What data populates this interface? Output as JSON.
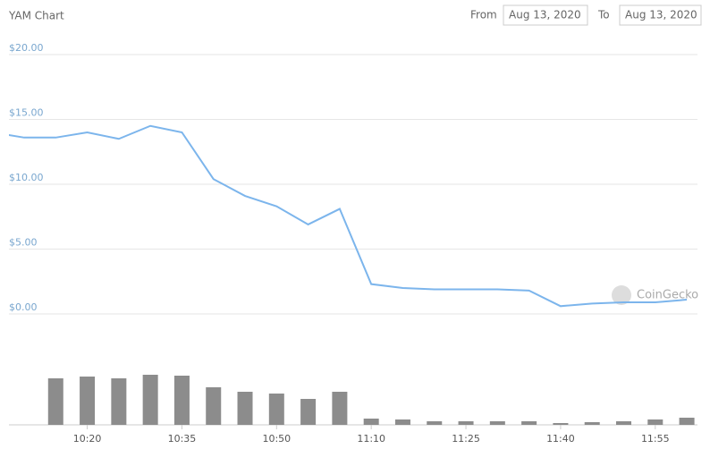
{
  "title": "YAM Chart",
  "from_label": "From",
  "from_date": "Aug 13, 2020",
  "to_label": "To",
  "to_date": "Aug 13, 2020",
  "watermark": "CoinGecko",
  "chart_data": {
    "type": "line",
    "categories": [
      null,
      null,
      null,
      "10:20",
      null,
      null,
      "10:35",
      null,
      null,
      "10:50",
      null,
      null,
      "11:10",
      null,
      null,
      "11:25",
      null,
      null,
      "11:40",
      null,
      null,
      "11:55",
      null
    ],
    "series": [
      {
        "color": "#7cb5ec",
        "values": [
          14.0,
          13.6,
          13.6,
          14.0,
          13.5,
          14.5,
          14.0,
          10.4,
          9.1,
          8.3,
          6.9,
          8.1,
          2.3,
          2.0,
          1.9,
          1.9,
          1.9,
          1.8,
          0.6,
          0.8,
          0.9,
          0.9,
          1.1
        ]
      }
    ],
    "volume": {
      "color": "#8c8c8c",
      "values": [
        null,
        null,
        52,
        54,
        52,
        56,
        55,
        42,
        37,
        35,
        29,
        37,
        7,
        6,
        4,
        4,
        4,
        4,
        2,
        3,
        4,
        6,
        8
      ]
    },
    "ylim": [
      0,
      20
    ],
    "yticks": [
      {
        "value": 0,
        "label": "$0.00"
      },
      {
        "value": 5,
        "label": "$5.00"
      },
      {
        "value": 10,
        "label": "$10.00"
      },
      {
        "value": 15,
        "label": "$15.00"
      },
      {
        "value": 20,
        "label": "$20.00"
      }
    ],
    "grid": true
  }
}
